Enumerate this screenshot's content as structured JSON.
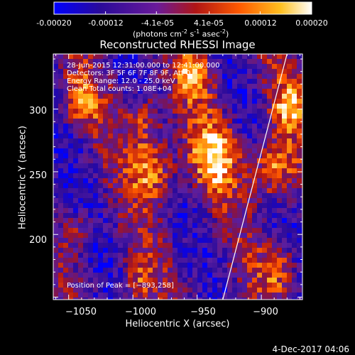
{
  "colorbar": {
    "ticks": [
      "-0.00020",
      "-0.00012",
      "-4.1e-05",
      "4.1e-05",
      "0.00012",
      "0.00020"
    ],
    "tick_values": [
      -0.0002,
      -0.00012,
      -4.1e-05,
      4.1e-05,
      0.00012,
      0.0002
    ],
    "units_prefix": "(photons cm",
    "units_exp1": "-2",
    "units_mid": " s",
    "units_exp2": "-1",
    "units_mid2": " asec",
    "units_exp3": "-2",
    "units_suffix": ")",
    "colors": [
      "#0000ff",
      "#3a0a8a",
      "#7a1fa0",
      "#c81e1e",
      "#ff7a00",
      "#ffcc33",
      "#ffffff"
    ]
  },
  "chart_data": {
    "type": "heatmap",
    "title": "Reconstructed RHESSI Image",
    "xlabel": "Heliocentric X (arcsec)",
    "ylabel": "Heliocentric Y (arcsec)",
    "xlim": [
      -1062,
      -868
    ],
    "ylim": [
      148,
      344
    ],
    "xticks": [
      -1050,
      -1000,
      -950,
      -900
    ],
    "yticks": [
      200,
      250,
      300
    ],
    "xtick_labels": [
      "−1050",
      "−1000",
      "−950",
      "−900"
    ],
    "ytick_labels": [
      "200",
      "250",
      "300"
    ],
    "limb_line": [
      [
        -930,
        148
      ],
      [
        -880,
        344
      ]
    ],
    "peak": [
      -893,
      258
    ],
    "annotations": [
      "28-Jun-2015 12:31:00.000 to 12:41:00.000",
      "Detectors: 3F 5F 6F 7F 8F 9F, Att 0",
      "Energy Range: 12.0 - 25.0 keV",
      "Clean      Total counts: 1.08E+04"
    ],
    "peak_label": "Position of Peak = [−893,258]",
    "grid": false
  },
  "footer": {
    "date": "4-Dec-2017 04:06"
  }
}
